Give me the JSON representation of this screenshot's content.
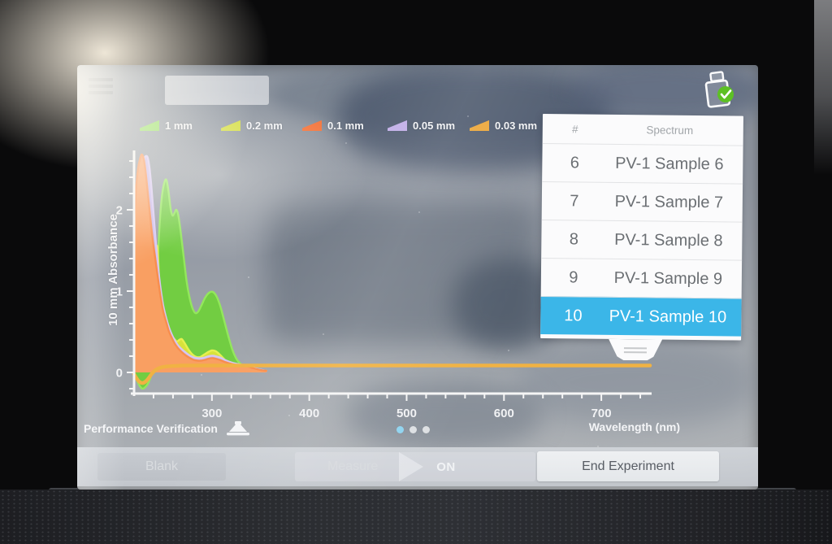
{
  "header": {
    "menu_icon": "hamburger-icon",
    "status_icon": "sample-check-icon"
  },
  "legend": [
    {
      "label": "1 mm",
      "color": "#8ddc57"
    },
    {
      "label": "0.2 mm",
      "color": "#d3dc3d"
    },
    {
      "label": "0.1 mm",
      "color": "#f4773f"
    },
    {
      "label": "0.05 mm",
      "color": "#c3b0e8"
    },
    {
      "label": "0.03 mm",
      "color": "#eda83c"
    }
  ],
  "chart_data": {
    "type": "area",
    "title": "",
    "xlabel": "Wavelength (nm)",
    "ylabel": "10 mm Absorbance",
    "xlim": [
      220,
      750
    ],
    "ylim": [
      -0.3,
      2.7
    ],
    "x_ticks": [
      300,
      400,
      500,
      600,
      700
    ],
    "y_ticks": [
      0,
      1,
      2
    ],
    "x_minor_step": 20,
    "y_minor_step": 0.2,
    "grid": false,
    "axis_color": "#f5f5f5",
    "series": [
      {
        "name": "1 mm",
        "fill": "#72cd42",
        "stroke": "#93e75c",
        "filled": true,
        "points": [
          [
            220,
            -0.03
          ],
          [
            223,
            -0.1
          ],
          [
            226,
            -0.17
          ],
          [
            229,
            -0.2
          ],
          [
            233,
            -0.16
          ],
          [
            236,
            -0.09
          ],
          [
            239,
            0.02
          ],
          [
            240.5,
            0.15
          ],
          [
            242,
            0.55
          ],
          [
            243.5,
            1.05
          ],
          [
            245,
            1.55
          ],
          [
            247,
            1.95
          ],
          [
            249,
            2.2
          ],
          [
            251.5,
            2.35
          ],
          [
            253.5,
            2.36
          ],
          [
            255.5,
            2.22
          ],
          [
            257.5,
            2.02
          ],
          [
            259.5,
            1.93
          ],
          [
            261.5,
            1.96
          ],
          [
            263.5,
            2.0
          ],
          [
            265.5,
            1.93
          ],
          [
            268,
            1.72
          ],
          [
            271,
            1.42
          ],
          [
            274,
            1.12
          ],
          [
            277,
            0.92
          ],
          [
            280,
            0.79
          ],
          [
            283,
            0.73
          ],
          [
            286,
            0.75
          ],
          [
            289,
            0.82
          ],
          [
            293,
            0.92
          ],
          [
            297,
            0.98
          ],
          [
            301,
            0.99
          ],
          [
            305,
            0.93
          ],
          [
            309,
            0.8
          ],
          [
            313,
            0.62
          ],
          [
            317,
            0.44
          ],
          [
            321,
            0.28
          ],
          [
            325,
            0.17
          ],
          [
            329,
            0.11
          ],
          [
            334,
            0.07
          ],
          [
            341,
            0.04
          ],
          [
            348,
            0.025
          ],
          [
            356,
            0.02
          ]
        ]
      },
      {
        "name": "0.2 mm",
        "fill": "#d8e23b",
        "stroke": "#e7f050",
        "filled": true,
        "points": [
          [
            238,
            0.04
          ],
          [
            239.5,
            0.25
          ],
          [
            241,
            0.75
          ],
          [
            242.5,
            1.3
          ],
          [
            243.5,
            1.55
          ],
          [
            244.5,
            1.45
          ],
          [
            246,
            1.05
          ],
          [
            248,
            0.72
          ],
          [
            250,
            0.55
          ],
          [
            252.5,
            0.46
          ],
          [
            255.5,
            0.44
          ],
          [
            258.5,
            0.45
          ],
          [
            261.5,
            0.41
          ],
          [
            264,
            0.38
          ],
          [
            266.5,
            0.4
          ],
          [
            269,
            0.41
          ],
          [
            272,
            0.36
          ],
          [
            276,
            0.28
          ],
          [
            280,
            0.22
          ],
          [
            284,
            0.19
          ],
          [
            288,
            0.19
          ],
          [
            292,
            0.22
          ],
          [
            296,
            0.25
          ],
          [
            300,
            0.27
          ],
          [
            304,
            0.26
          ],
          [
            308,
            0.22
          ],
          [
            312,
            0.17
          ],
          [
            316,
            0.12
          ],
          [
            321,
            0.08
          ],
          [
            327,
            0.05
          ],
          [
            334,
            0.035
          ],
          [
            342,
            0.025
          ],
          [
            352,
            0.02
          ]
        ]
      },
      {
        "name": "0.05 mm",
        "fill": "#c9b7ea",
        "stroke": "#d6c6f2",
        "filled": true,
        "points": [
          [
            220,
            1.45
          ],
          [
            222,
            1.8
          ],
          [
            224,
            2.1
          ],
          [
            226,
            2.35
          ],
          [
            228,
            2.52
          ],
          [
            230,
            2.62
          ],
          [
            232,
            2.66
          ],
          [
            234,
            2.64
          ],
          [
            236,
            2.5
          ],
          [
            238,
            2.25
          ],
          [
            240,
            1.95
          ],
          [
            242,
            1.65
          ],
          [
            244,
            1.38
          ],
          [
            246,
            1.15
          ],
          [
            248,
            0.97
          ],
          [
            250,
            0.82
          ],
          [
            253,
            0.67
          ],
          [
            256,
            0.55
          ],
          [
            259,
            0.46
          ],
          [
            262,
            0.39
          ],
          [
            265,
            0.335
          ],
          [
            269,
            0.285
          ],
          [
            273,
            0.245
          ],
          [
            277,
            0.21
          ],
          [
            281,
            0.185
          ],
          [
            285,
            0.175
          ],
          [
            289,
            0.175
          ],
          [
            293,
            0.185
          ],
          [
            297,
            0.2
          ],
          [
            301,
            0.205
          ],
          [
            305,
            0.195
          ],
          [
            309,
            0.18
          ],
          [
            313,
            0.155
          ],
          [
            317,
            0.135
          ],
          [
            322,
            0.115
          ],
          [
            328,
            0.1
          ],
          [
            335,
            0.085
          ],
          [
            343,
            0.055
          ],
          [
            350,
            0.033
          ],
          [
            356,
            0.02
          ]
        ]
      },
      {
        "name": "0.1 mm",
        "fill": "#f99f62",
        "stroke": "#f78e4e",
        "filled": true,
        "points": [
          [
            220,
            1.85
          ],
          [
            222,
            2.25
          ],
          [
            224,
            2.5
          ],
          [
            226,
            2.62
          ],
          [
            228,
            2.68
          ],
          [
            230,
            2.62
          ],
          [
            232,
            2.45
          ],
          [
            234,
            2.22
          ],
          [
            236,
            1.98
          ],
          [
            238,
            1.75
          ],
          [
            240,
            1.55
          ],
          [
            242,
            1.38
          ],
          [
            244,
            1.2
          ],
          [
            246,
            1.03
          ],
          [
            248,
            0.88
          ],
          [
            250,
            0.75
          ],
          [
            253,
            0.62
          ],
          [
            256,
            0.5
          ],
          [
            259,
            0.42
          ],
          [
            262,
            0.35
          ],
          [
            265,
            0.3
          ],
          [
            269,
            0.25
          ],
          [
            273,
            0.21
          ],
          [
            277,
            0.18
          ],
          [
            281,
            0.155
          ],
          [
            285,
            0.145
          ],
          [
            289,
            0.145
          ],
          [
            293,
            0.155
          ],
          [
            297,
            0.17
          ],
          [
            301,
            0.175
          ],
          [
            305,
            0.165
          ],
          [
            309,
            0.15
          ],
          [
            313,
            0.13
          ],
          [
            317,
            0.115
          ],
          [
            322,
            0.1
          ],
          [
            328,
            0.09
          ],
          [
            335,
            0.08
          ],
          [
            343,
            0.05
          ],
          [
            350,
            0.03
          ],
          [
            356,
            0.02
          ]
        ]
      },
      {
        "name": "0.03 mm",
        "fill": "none",
        "stroke": "#f0b243",
        "filled": false,
        "stroke_width": 4.5,
        "points": [
          [
            220,
            -0.02
          ],
          [
            223,
            -0.08
          ],
          [
            226,
            -0.12
          ],
          [
            229,
            -0.13
          ],
          [
            232,
            -0.11
          ],
          [
            235,
            -0.07
          ],
          [
            238,
            -0.02
          ],
          [
            241,
            0.02
          ],
          [
            245,
            0.05
          ],
          [
            250,
            0.068
          ],
          [
            258,
            0.078
          ],
          [
            268,
            0.083
          ],
          [
            280,
            0.085
          ],
          [
            400,
            0.085
          ],
          [
            550,
            0.085
          ],
          [
            750,
            0.085
          ]
        ]
      }
    ]
  },
  "sample_panel": {
    "col_num": "#",
    "col_spectrum": "Spectrum",
    "rows": [
      {
        "num": "6",
        "name": "PV-1 Sample 6",
        "selected": false
      },
      {
        "num": "7",
        "name": "PV-1 Sample 7",
        "selected": false
      },
      {
        "num": "8",
        "name": "PV-1 Sample 8",
        "selected": false
      },
      {
        "num": "9",
        "name": "PV-1 Sample 9",
        "selected": false
      },
      {
        "num": "10",
        "name": "PV-1 Sample 10",
        "selected": true
      }
    ],
    "selected_color": "#3bb6e8"
  },
  "footer": {
    "left_label": "Performance Verification",
    "right_label": "Wavelength (nm)",
    "page_dots": {
      "count": 3,
      "active": 0,
      "active_color": "#8fd4f0"
    }
  },
  "toolbar": {
    "blank_label": "Blank",
    "measure_label": "Measure",
    "measure_state": "ON",
    "end_label": "End Experiment"
  }
}
